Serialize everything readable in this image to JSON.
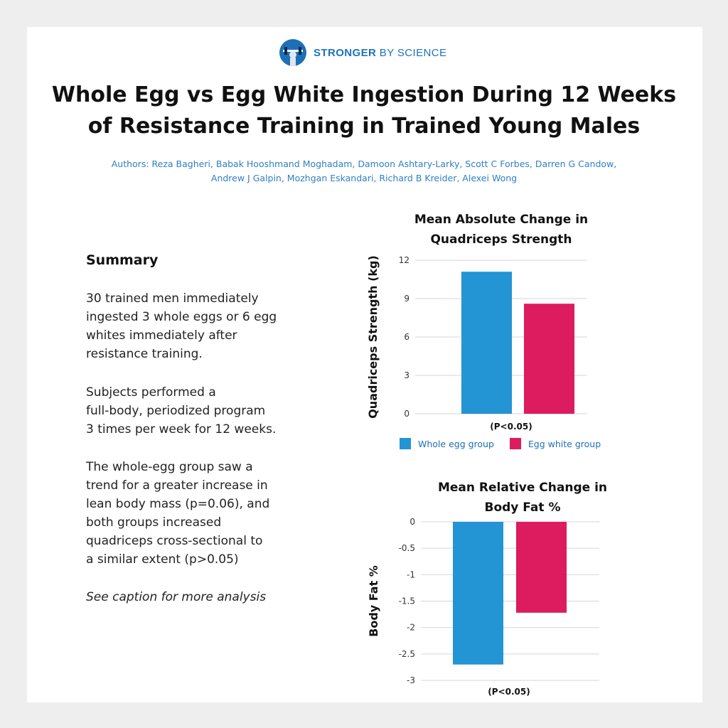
{
  "brand": {
    "name_bold": "STRONGER",
    "name_light": "BY SCIENCE"
  },
  "title": {
    "line1": "Whole Egg vs Egg White Ingestion During 12 Weeks",
    "line2": "of Resistance Training in Trained Young Males"
  },
  "authors": {
    "line1": "Authors: Reza Bagheri, Babak Hooshmand Moghadam, Damoon Ashtary-Larky, Scott C Forbes, Darren G Candow,",
    "line2": "Andrew J Galpin, Mozhgan Eskandari, Richard B Kreider, Alexei Wong"
  },
  "summary": {
    "heading": "Summary",
    "p1": [
      "30 trained men immediately",
      "ingested 3 whole eggs or 6 egg",
      "whites immediately after",
      "resistance training."
    ],
    "p2": [
      "Subjects performed a",
      "full-body, periodized program",
      "3 times per week for 12 weeks."
    ],
    "p3": [
      "The whole-egg group saw a",
      "trend for a greater increase in",
      "lean body mass (p=0.06), and",
      "both groups increased",
      "quadriceps cross-sectional to",
      "a similar extent (p>0.05)"
    ],
    "caption_note": "See caption for more analysis"
  },
  "colors": {
    "whole_egg": "#2394d4",
    "egg_white": "#dc1c5e",
    "brand": "#1e73be"
  },
  "legend": {
    "whole": "Whole egg group",
    "white": "Egg white group"
  },
  "chart_data": [
    {
      "type": "bar",
      "title_line1": "Mean Absolute Change in",
      "title_line2": "Quadriceps Strength",
      "ylabel": "Quadriceps Strength (kg)",
      "ylim": [
        0,
        12
      ],
      "yticks": [
        "0",
        "3",
        "6",
        "9",
        "12"
      ],
      "categories": [
        "Whole egg group",
        "Egg white group"
      ],
      "values": [
        11.1,
        8.6
      ],
      "annotation": "(P<0.05)",
      "grid": true
    },
    {
      "type": "bar",
      "title_line1": "Mean Relative Change in",
      "title_line2": "Body Fat %",
      "ylabel": "Body Fat %",
      "ylim": [
        -3,
        0
      ],
      "yticks": [
        "0",
        "-0.5",
        "-1",
        "-1.5",
        "-2",
        "-2.5",
        "-3"
      ],
      "categories": [
        "Whole egg group",
        "Egg white group"
      ],
      "values": [
        -2.7,
        -1.72
      ],
      "annotation": "(P<0.05)",
      "grid": true
    }
  ]
}
